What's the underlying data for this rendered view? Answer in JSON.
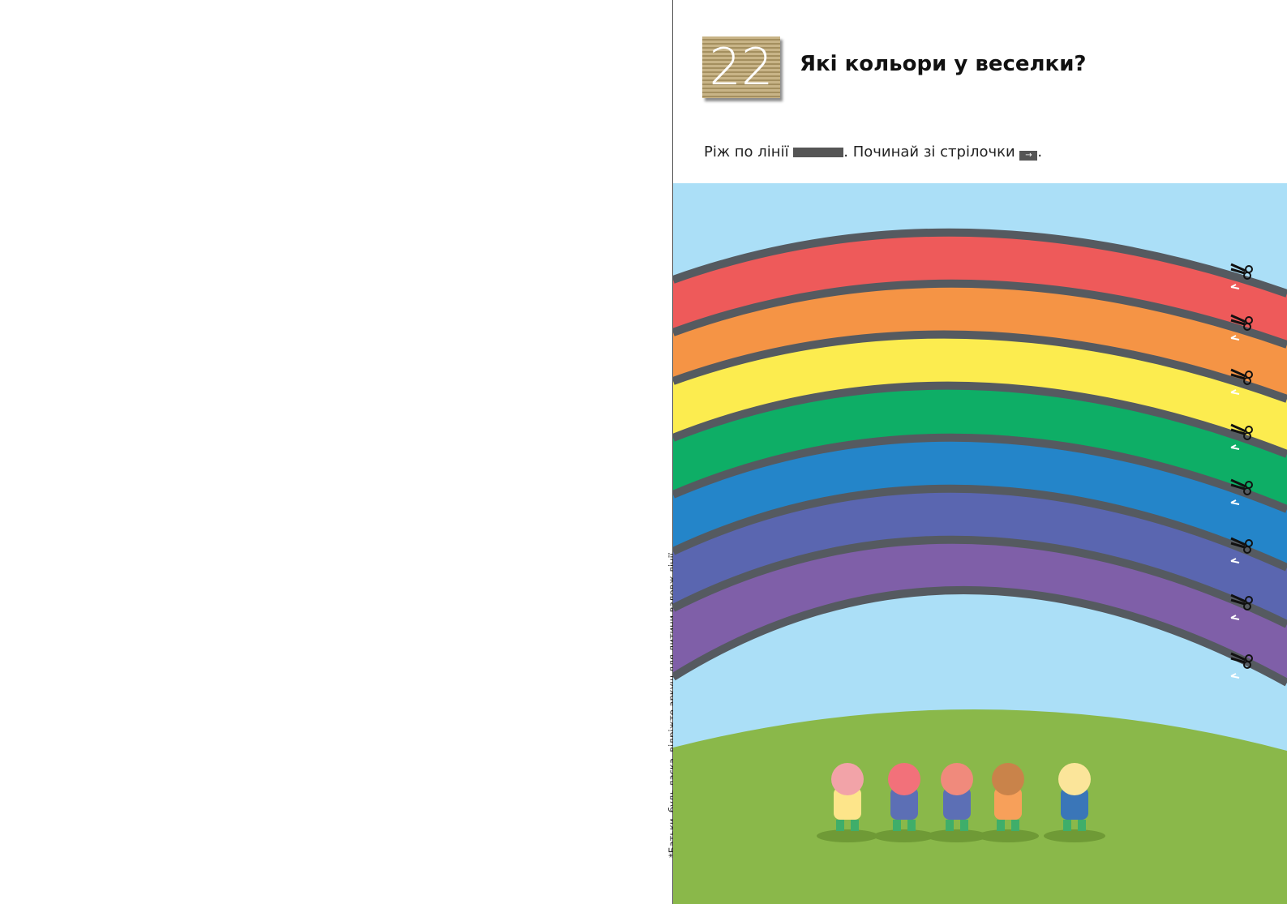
{
  "lesson": {
    "number": "22",
    "title": "Які кольори у веселки?"
  },
  "instruction": {
    "part1": "Ріж по лінії ",
    "part2": ". Починай зі стрілочки ",
    "part3": ".",
    "arrow_icon": "→"
  },
  "side_note": "*Батьки, будь ласка, відріжте аркуш для дитини вздовж лінії.",
  "colors": {
    "sky": "#abdff7",
    "hill": "#8ab84a",
    "cut_line": "#555a60",
    "bands": [
      "#ee5a5a",
      "#f59445",
      "#fcec4f",
      "#0eae66",
      "#2485c9",
      "#5a66b0",
      "#7f5fa8"
    ]
  }
}
